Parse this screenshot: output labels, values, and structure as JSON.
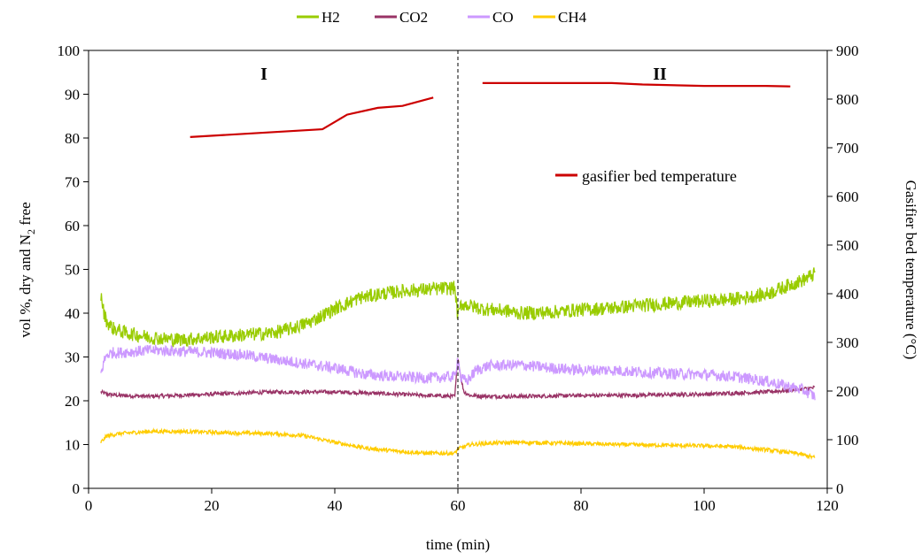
{
  "chart_data": {
    "type": "line",
    "xlabel": "time (min)",
    "ylabel_left_parts": {
      "before": "vol %, dry and N",
      "subscript": "2",
      "after": " free"
    },
    "ylabel_right": "Gasifier bed temperature (°C)",
    "xlim": [
      0,
      120
    ],
    "ylim_left": [
      0,
      100
    ],
    "ylim_right": [
      0,
      900
    ],
    "x_ticks": [
      "0",
      "20",
      "40",
      "60",
      "80",
      "100",
      "120"
    ],
    "y_ticks_left": [
      "0",
      "10",
      "20",
      "30",
      "40",
      "50",
      "60",
      "70",
      "80",
      "90",
      "100"
    ],
    "y_ticks_right": [
      "0",
      "100",
      "200",
      "300",
      "400",
      "500",
      "600",
      "700",
      "800",
      "900"
    ],
    "legend_position": "top-center",
    "period_labels": [
      "I",
      "II"
    ],
    "divider_x": 60,
    "series": [
      {
        "name": "H2",
        "color": "#99CC00",
        "axis": "left",
        "x": [
          2,
          2.5,
          3,
          4,
          5,
          6,
          8,
          10,
          12,
          14,
          16,
          18,
          20,
          25,
          30,
          33,
          36,
          40,
          44,
          48,
          52,
          56,
          59.5,
          60,
          60.5,
          61,
          64,
          68,
          70,
          75,
          80,
          85,
          90,
          95,
          100,
          105,
          110,
          114,
          116,
          118
        ],
        "values": [
          44,
          40,
          38,
          36.5,
          36,
          35.5,
          35,
          34.5,
          34.2,
          34,
          34,
          34.3,
          34.5,
          35,
          35.5,
          36.5,
          38,
          41,
          43.5,
          44.5,
          45.2,
          45.5,
          45.8,
          39,
          42,
          42,
          41,
          40.5,
          40,
          40.2,
          40.8,
          41.2,
          41.8,
          42.3,
          42.8,
          43.2,
          44.3,
          46.5,
          47.5,
          49
        ]
      },
      {
        "name": "CO2",
        "color": "#993366",
        "axis": "left",
        "x": [
          2,
          3,
          5,
          10,
          20,
          30,
          35,
          40,
          45,
          50,
          55,
          59.5,
          60,
          60.5,
          61,
          62,
          65,
          70,
          80,
          90,
          100,
          110,
          115,
          118
        ],
        "values": [
          22,
          21.5,
          21.2,
          21,
          21.5,
          22,
          22,
          22,
          21.8,
          21.5,
          21.2,
          21,
          30,
          25,
          22,
          21.2,
          21,
          21,
          21.2,
          21.3,
          21.5,
          22,
          22.5,
          23
        ]
      },
      {
        "name": "CO",
        "color": "#CC99FF",
        "axis": "left",
        "x": [
          2,
          2.5,
          3,
          4,
          5,
          7,
          10,
          12,
          15,
          20,
          25,
          30,
          35,
          40,
          45,
          50,
          55,
          59.5,
          60,
          60.5,
          61.5,
          63,
          65,
          70,
          75,
          80,
          85,
          90,
          95,
          100,
          105,
          110,
          113,
          116,
          118
        ],
        "values": [
          26,
          29,
          30.5,
          31,
          31,
          31.2,
          31.5,
          31.5,
          31.3,
          31,
          30.5,
          29.5,
          28.5,
          27.5,
          26,
          25.5,
          25.2,
          25.5,
          30,
          25,
          24.5,
          27,
          28,
          28.2,
          27.5,
          27,
          27,
          26.5,
          26.2,
          26,
          25.5,
          24.5,
          23.5,
          22.5,
          21
        ]
      },
      {
        "name": "CH4",
        "color": "#FFCC00",
        "axis": "left",
        "x": [
          2,
          3,
          5,
          10,
          15,
          20,
          25,
          30,
          35,
          40,
          45,
          50,
          55,
          59.5,
          60,
          62,
          65,
          70,
          80,
          90,
          100,
          105,
          110,
          115,
          118
        ],
        "values": [
          10.5,
          12,
          12.5,
          13,
          13,
          12.8,
          12.6,
          12.5,
          12,
          10.5,
          9.2,
          8.5,
          8,
          8,
          9,
          10,
          10.3,
          10.5,
          10.2,
          9.9,
          9.7,
          9.5,
          8.8,
          8,
          7
        ]
      },
      {
        "name": "gasifier bed temperature",
        "color": "#CC0000",
        "axis": "right",
        "segments": [
          {
            "x": [
              16.5,
              38,
              42,
              47,
              51,
              56
            ],
            "values": [
              722,
              738,
              768,
              782,
              786,
              803
            ]
          },
          {
            "x": [
              64,
              85,
              90,
              100,
              110,
              114
            ],
            "values": [
              833,
              833,
              830,
              827,
              827,
              826
            ]
          }
        ]
      }
    ]
  }
}
